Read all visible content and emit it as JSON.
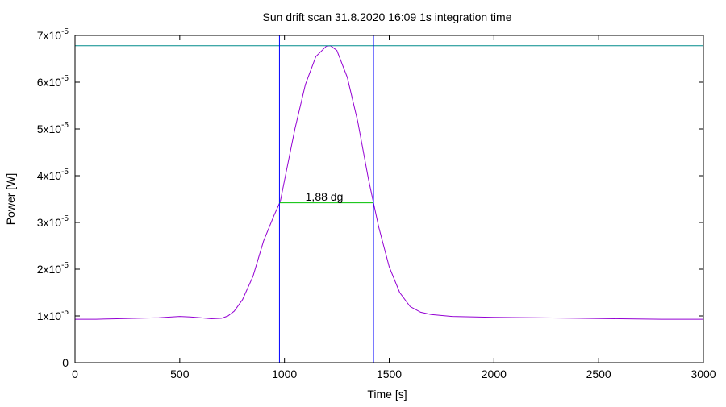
{
  "chart_data": {
    "type": "line",
    "title": "Sun drift scan 31.8.2020 16:09 1s integration time",
    "xlabel": "Time [s]",
    "ylabel": "Power [W]",
    "xlim": [
      0,
      3000
    ],
    "ylim": [
      0,
      7e-05
    ],
    "x_ticks": [
      0,
      500,
      1000,
      1500,
      2000,
      2500,
      3000
    ],
    "y_ticks": [
      {
        "value": 0,
        "mantissa": "0",
        "exp": ""
      },
      {
        "value": 1e-05,
        "mantissa": "1x10",
        "exp": "-5"
      },
      {
        "value": 2e-05,
        "mantissa": "2x10",
        "exp": "-5"
      },
      {
        "value": 3e-05,
        "mantissa": "3x10",
        "exp": "-5"
      },
      {
        "value": 4e-05,
        "mantissa": "4x10",
        "exp": "-5"
      },
      {
        "value": 5e-05,
        "mantissa": "5x10",
        "exp": "-5"
      },
      {
        "value": 6e-05,
        "mantissa": "6x10",
        "exp": "-5"
      },
      {
        "value": 7e-05,
        "mantissa": "7x10",
        "exp": "-5"
      }
    ],
    "grid": false,
    "series": [
      {
        "color": "#9400d3",
        "x": [
          0,
          100,
          200,
          300,
          400,
          500,
          550,
          600,
          650,
          700,
          730,
          760,
          800,
          850,
          900,
          950,
          980,
          1000,
          1050,
          1100,
          1150,
          1200,
          1220,
          1250,
          1300,
          1350,
          1400,
          1425,
          1450,
          1500,
          1550,
          1600,
          1650,
          1700,
          1800,
          2000,
          2200,
          2400,
          2600,
          2800,
          3000
        ],
        "y": [
          9.3e-06,
          9.3e-06,
          9.4e-06,
          9.5e-06,
          9.6e-06,
          9.9e-06,
          9.8e-06,
          9.6e-06,
          9.4e-06,
          9.5e-06,
          1e-05,
          1.1e-05,
          1.35e-05,
          1.85e-05,
          2.6e-05,
          3.15e-05,
          3.45e-05,
          3.9e-05,
          5e-05,
          5.95e-05,
          6.55e-05,
          6.77e-05,
          6.78e-05,
          6.68e-05,
          6.1e-05,
          5.15e-05,
          3.95e-05,
          3.42e-05,
          2.9e-05,
          2.05e-05,
          1.5e-05,
          1.2e-05,
          1.08e-05,
          1.03e-05,
          9.9e-06,
          9.7e-06,
          9.6e-06,
          9.5e-06,
          9.4e-06,
          9.3e-06,
          9.3e-06
        ]
      }
    ],
    "reference_lines": {
      "peak_level": 6.78e-05,
      "peak_color": "#008b8b",
      "half_power_level": 3.42e-05,
      "half_power_color": "#00c000",
      "half_power_from": 976,
      "half_power_to": 1425,
      "vertical_markers": [
        976,
        1425
      ],
      "vertical_color": "#0000ff"
    },
    "annotation": "1,88 dg"
  }
}
